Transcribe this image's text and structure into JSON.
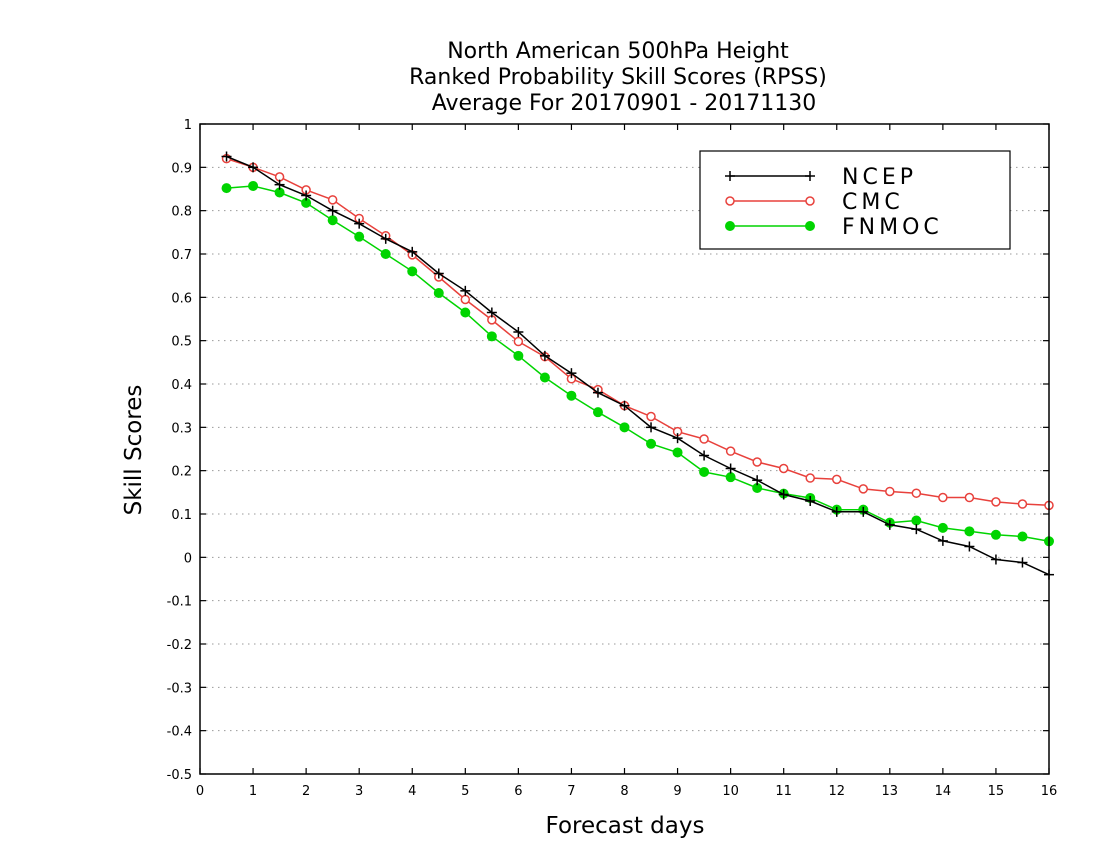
{
  "chart_data": {
    "type": "line",
    "title_lines": [
      "North American 500hPa Height",
      "Ranked Probability Skill Scores (RPSS)",
      "Average For 20170901 - 20171130"
    ],
    "xlabel": "Forecast days",
    "ylabel": "Skill Scores",
    "xlim": [
      0,
      16
    ],
    "ylim": [
      -0.5,
      1
    ],
    "xticks": [
      "0",
      "1",
      "2",
      "3",
      "4",
      "5",
      "6",
      "7",
      "8",
      "9",
      "10",
      "11",
      "12",
      "13",
      "14",
      "15",
      "16"
    ],
    "yticks": [
      "-0.5",
      "-0.4",
      "-0.3",
      "-0.2",
      "-0.1",
      "0",
      "0.1",
      "0.2",
      "0.3",
      "0.4",
      "0.5",
      "0.6",
      "0.7",
      "0.8",
      "0.9",
      "1"
    ],
    "grid": "horizontal-dotted",
    "legend_position": "top-right",
    "x": [
      0.5,
      1,
      1.5,
      2,
      2.5,
      3,
      3.5,
      4,
      4.5,
      5,
      5.5,
      6,
      6.5,
      7,
      7.5,
      8,
      8.5,
      9,
      9.5,
      10,
      10.5,
      11,
      11.5,
      12,
      12.5,
      13,
      13.5,
      14,
      14.5,
      15,
      15.5,
      16
    ],
    "series": [
      {
        "name": "NCEP",
        "color": "#000000",
        "marker": "plus",
        "values": [
          0.925,
          0.9,
          0.86,
          0.835,
          0.8,
          0.77,
          0.735,
          0.705,
          0.655,
          0.615,
          0.565,
          0.52,
          0.465,
          0.425,
          0.38,
          0.35,
          0.3,
          0.275,
          0.235,
          0.205,
          0.178,
          0.145,
          0.13,
          0.105,
          0.105,
          0.075,
          0.065,
          0.038,
          0.025,
          -0.005,
          -0.012,
          -0.04
        ]
      },
      {
        "name": "CMC",
        "color": "#e8413c",
        "marker": "open-circle",
        "values": [
          0.92,
          0.9,
          0.878,
          0.848,
          0.825,
          0.782,
          0.742,
          0.698,
          0.647,
          0.595,
          0.548,
          0.498,
          0.463,
          0.412,
          0.387,
          0.35,
          0.325,
          0.29,
          0.273,
          0.245,
          0.22,
          0.205,
          0.183,
          0.18,
          0.158,
          0.152,
          0.148,
          0.138,
          0.138,
          0.128,
          0.123,
          0.12
        ]
      },
      {
        "name": "FNMOC",
        "color": "#00d400",
        "marker": "filled-circle",
        "values": [
          0.852,
          0.857,
          0.842,
          0.818,
          0.778,
          0.74,
          0.7,
          0.66,
          0.61,
          0.565,
          0.51,
          0.465,
          0.415,
          0.373,
          0.335,
          0.3,
          0.262,
          0.242,
          0.197,
          0.185,
          0.16,
          0.147,
          0.137,
          0.11,
          0.11,
          0.08,
          0.085,
          0.068,
          0.06,
          0.052,
          0.048,
          0.037
        ]
      }
    ]
  }
}
